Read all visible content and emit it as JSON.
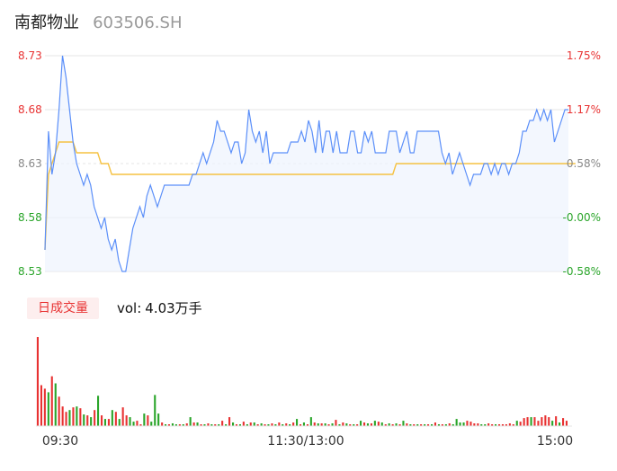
{
  "stock": {
    "name": "南都物业",
    "code": "603506.SH"
  },
  "volume": {
    "badge": "日成交量",
    "label": "vol:",
    "value": "4.03万手"
  },
  "colors": {
    "price": "#5b8ff9",
    "avg": "#f5c242",
    "up": "#e83232",
    "down": "#2aa52a",
    "grid": "#e5e5e5"
  },
  "chart_data": {
    "type": "line",
    "price_axis": {
      "min": 8.53,
      "max": 8.73,
      "ticks": [
        "8.73",
        "8.68",
        "8.63",
        "8.58",
        "8.53"
      ]
    },
    "pct_axis": {
      "ticks": [
        "1.75%",
        "1.17%",
        "0.58%",
        "-0.00%",
        "-0.58%"
      ]
    },
    "time_labels": [
      "09:30",
      "11:30/13:00",
      "15:00"
    ],
    "price": [
      8.55,
      8.66,
      8.62,
      8.64,
      8.68,
      8.73,
      8.71,
      8.68,
      8.65,
      8.63,
      8.62,
      8.61,
      8.62,
      8.61,
      8.59,
      8.58,
      8.57,
      8.58,
      8.56,
      8.55,
      8.56,
      8.54,
      8.53,
      8.53,
      8.55,
      8.57,
      8.58,
      8.59,
      8.58,
      8.6,
      8.61,
      8.6,
      8.59,
      8.6,
      8.61,
      8.61,
      8.61,
      8.61,
      8.61,
      8.61,
      8.61,
      8.61,
      8.62,
      8.62,
      8.63,
      8.64,
      8.63,
      8.64,
      8.65,
      8.67,
      8.66,
      8.66,
      8.65,
      8.64,
      8.65,
      8.65,
      8.63,
      8.64,
      8.68,
      8.66,
      8.65,
      8.66,
      8.64,
      8.66,
      8.63,
      8.64,
      8.64,
      8.64,
      8.64,
      8.64,
      8.65,
      8.65,
      8.65,
      8.66,
      8.65,
      8.67,
      8.66,
      8.64,
      8.67,
      8.64,
      8.66,
      8.66,
      8.64,
      8.66,
      8.64,
      8.64,
      8.64,
      8.66,
      8.66,
      8.64,
      8.64,
      8.66,
      8.65,
      8.66,
      8.64,
      8.64,
      8.64,
      8.64,
      8.66,
      8.66,
      8.66,
      8.64,
      8.65,
      8.66,
      8.64,
      8.64,
      8.66,
      8.66,
      8.66,
      8.66,
      8.66,
      8.66,
      8.66,
      8.64,
      8.63,
      8.64,
      8.62,
      8.63,
      8.64,
      8.63,
      8.62,
      8.61,
      8.62,
      8.62,
      8.62,
      8.63,
      8.63,
      8.62,
      8.63,
      8.62,
      8.63,
      8.63,
      8.62,
      8.63,
      8.63,
      8.64,
      8.66,
      8.66,
      8.67,
      8.67,
      8.68,
      8.67,
      8.68,
      8.67,
      8.68,
      8.65,
      8.66,
      8.67,
      8.68,
      8.68
    ],
    "avg_price": [
      8.55,
      8.62,
      8.63,
      8.64,
      8.65,
      8.65,
      8.65,
      8.65,
      8.65,
      8.64,
      8.64,
      8.64,
      8.64,
      8.64,
      8.64,
      8.64,
      8.63,
      8.63,
      8.63,
      8.62,
      8.62,
      8.62,
      8.62,
      8.62,
      8.62,
      8.62,
      8.62,
      8.62,
      8.62,
      8.62,
      8.62,
      8.62,
      8.62,
      8.62,
      8.62,
      8.62,
      8.62,
      8.62,
      8.62,
      8.62,
      8.62,
      8.62,
      8.62,
      8.62,
      8.62,
      8.62,
      8.62,
      8.62,
      8.62,
      8.62,
      8.62,
      8.62,
      8.62,
      8.62,
      8.62,
      8.62,
      8.62,
      8.62,
      8.62,
      8.62,
      8.62,
      8.62,
      8.62,
      8.62,
      8.62,
      8.62,
      8.62,
      8.62,
      8.62,
      8.62,
      8.62,
      8.62,
      8.62,
      8.62,
      8.62,
      8.62,
      8.62,
      8.62,
      8.62,
      8.62,
      8.62,
      8.62,
      8.62,
      8.62,
      8.62,
      8.62,
      8.62,
      8.62,
      8.62,
      8.62,
      8.62,
      8.62,
      8.62,
      8.62,
      8.62,
      8.62,
      8.62,
      8.62,
      8.62,
      8.62,
      8.63,
      8.63,
      8.63,
      8.63,
      8.63,
      8.63,
      8.63,
      8.63,
      8.63,
      8.63,
      8.63,
      8.63,
      8.63,
      8.63,
      8.63,
      8.63,
      8.63,
      8.63,
      8.63,
      8.63,
      8.63,
      8.63,
      8.63,
      8.63,
      8.63,
      8.63,
      8.63,
      8.63,
      8.63,
      8.63,
      8.63,
      8.63,
      8.63,
      8.63,
      8.63,
      8.63,
      8.63,
      8.63,
      8.63,
      8.63,
      8.63,
      8.63,
      8.63,
      8.63,
      8.63,
      8.63,
      8.63,
      8.63,
      8.63,
      8.63,
      8.63,
      8.63
    ],
    "volume_lots": [
      100,
      46,
      42,
      38,
      56,
      48,
      33,
      22,
      16,
      18,
      21,
      22,
      20,
      13,
      12,
      10,
      18,
      34,
      12,
      8,
      8,
      18,
      16,
      8,
      21,
      12,
      10,
      5,
      6,
      2,
      14,
      12,
      5,
      35,
      14,
      4,
      2,
      2,
      3,
      2,
      2,
      2,
      3,
      10,
      4,
      4,
      2,
      2,
      3,
      2,
      2,
      2,
      6,
      2,
      10,
      4,
      2,
      2,
      5,
      2,
      4,
      4,
      2,
      3,
      2,
      2,
      3,
      2,
      4,
      2,
      3,
      2,
      4,
      8,
      2,
      4,
      2,
      10,
      4,
      3,
      3,
      3,
      2,
      3,
      7,
      2,
      4,
      3,
      2,
      2,
      2,
      6,
      4,
      3,
      3,
      6,
      5,
      4,
      2,
      3,
      2,
      3,
      2,
      6,
      3,
      2,
      2,
      2,
      2,
      2,
      2,
      2,
      4,
      2,
      2,
      2,
      3,
      2,
      8,
      4,
      4,
      6,
      5,
      3,
      3,
      2,
      2,
      3,
      2,
      2,
      2,
      2,
      2,
      3,
      2,
      6,
      5,
      9,
      10,
      10,
      10,
      6,
      10,
      12,
      10,
      6,
      11,
      4,
      9,
      6
    ],
    "volume_up": [
      true,
      true,
      true,
      false,
      true,
      false,
      true,
      true,
      true,
      false,
      true,
      false,
      true,
      false,
      true,
      false,
      true,
      false,
      true,
      false,
      true,
      false,
      true,
      false,
      true,
      true,
      false,
      false,
      true,
      true,
      false,
      true,
      false,
      false,
      false,
      true,
      false,
      true,
      false,
      false,
      true,
      false,
      true,
      false,
      true,
      false,
      true,
      false,
      true,
      false,
      true,
      false,
      true,
      false,
      true,
      false,
      true,
      false,
      true,
      false,
      true,
      false,
      true,
      false,
      true,
      false,
      true,
      false,
      true,
      false,
      true,
      false,
      true,
      false,
      true,
      false,
      true,
      false,
      true,
      false,
      true,
      false,
      true,
      false,
      true,
      false,
      true,
      false,
      true,
      false,
      true,
      false,
      true,
      false,
      true,
      false,
      true,
      false,
      true,
      false,
      true,
      false,
      true,
      false,
      true,
      false,
      true,
      false,
      true,
      false,
      true,
      false,
      true,
      false,
      true,
      false,
      true,
      false,
      false,
      false,
      false,
      true,
      true,
      true,
      true,
      false,
      false,
      true,
      true,
      false,
      true,
      true,
      true,
      true,
      true,
      false,
      true,
      true,
      true,
      false,
      true,
      true,
      true,
      true,
      true,
      false,
      true,
      false,
      true,
      true
    ]
  }
}
